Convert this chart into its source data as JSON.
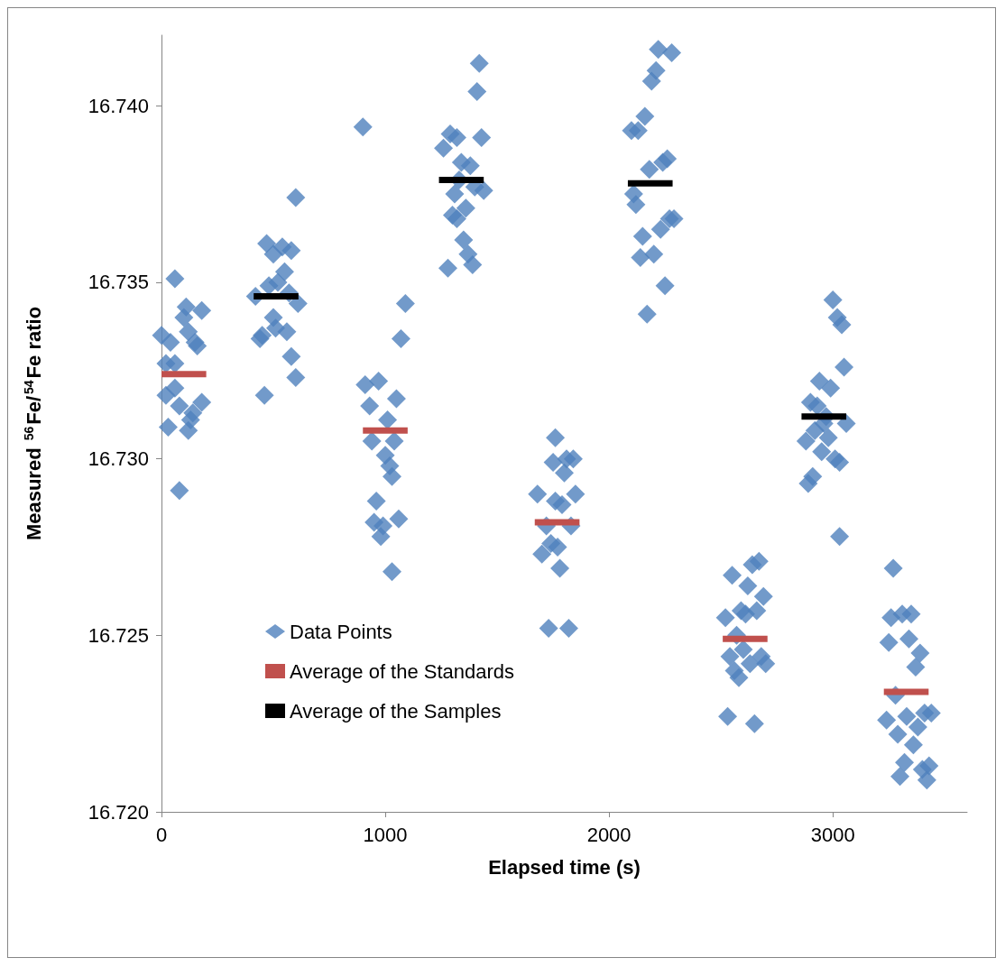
{
  "chart_data": {
    "type": "scatter",
    "xlabel": "Elapsed time (s)",
    "ylabel": "Measured $^{56}$Fe/$^{54}$Fe ratio",
    "xlim": [
      0,
      3600
    ],
    "xticks": [
      0,
      1000,
      2000,
      3000
    ],
    "ylim": [
      16.72,
      16.742
    ],
    "yticks": [
      {
        "value": 16.72,
        "label": "16.720"
      },
      {
        "value": 16.725,
        "label": "16.725"
      },
      {
        "value": 16.73,
        "label": "16.730"
      },
      {
        "value": 16.735,
        "label": "16.735"
      },
      {
        "value": 16.74,
        "label": "16.740"
      }
    ],
    "grid": false,
    "legend": "bottom left",
    "series": [
      {
        "name": "Data Points",
        "color": "#4f81bd",
        "marker": "diamond",
        "x": [
          0,
          20,
          30,
          40,
          60,
          60,
          60,
          80,
          80,
          100,
          110,
          120,
          120,
          130,
          140,
          150,
          160,
          180,
          180,
          20,
          420,
          440,
          460,
          470,
          480,
          500,
          500,
          510,
          520,
          540,
          550,
          560,
          570,
          580,
          580,
          600,
          610,
          600,
          450,
          900,
          910,
          930,
          940,
          950,
          960,
          970,
          980,
          990,
          1000,
          1010,
          1020,
          1030,
          1040,
          1050,
          1060,
          1070,
          1090,
          1030,
          1260,
          1280,
          1290,
          1300,
          1310,
          1320,
          1330,
          1340,
          1350,
          1360,
          1370,
          1380,
          1390,
          1400,
          1410,
          1420,
          1430,
          1440,
          1320,
          1680,
          1700,
          1720,
          1730,
          1740,
          1750,
          1760,
          1770,
          1780,
          1790,
          1800,
          1810,
          1820,
          1830,
          1840,
          1850,
          1760,
          2100,
          2110,
          2120,
          2130,
          2140,
          2150,
          2160,
          2170,
          2180,
          2190,
          2200,
          2210,
          2220,
          2230,
          2240,
          2250,
          2260,
          2270,
          2280,
          2290,
          2520,
          2530,
          2540,
          2550,
          2560,
          2570,
          2580,
          2590,
          2600,
          2610,
          2620,
          2630,
          2640,
          2650,
          2660,
          2670,
          2680,
          2690,
          2700,
          2880,
          2890,
          2900,
          2910,
          2920,
          2930,
          2940,
          2950,
          2960,
          2970,
          2980,
          3000,
          3010,
          3020,
          3030,
          3040,
          3050,
          3060,
          3030,
          2990,
          3240,
          3250,
          3260,
          3270,
          3280,
          3290,
          3300,
          3310,
          3320,
          3330,
          3340,
          3350,
          3360,
          3370,
          3380,
          3390,
          3400,
          3410,
          3420,
          3430,
          3440
        ],
        "values": [
          16.7335,
          16.7318,
          16.7309,
          16.7333,
          16.7351,
          16.7327,
          16.732,
          16.7291,
          16.7315,
          16.734,
          16.7343,
          16.7308,
          16.7336,
          16.7311,
          16.7313,
          16.7333,
          16.7332,
          16.7342,
          16.7316,
          16.7327,
          16.7346,
          16.7334,
          16.7318,
          16.7361,
          16.7349,
          16.7358,
          16.734,
          16.7337,
          16.735,
          16.736,
          16.7353,
          16.7336,
          16.7347,
          16.7359,
          16.7329,
          16.7323,
          16.7344,
          16.7374,
          16.7335,
          16.7394,
          16.7321,
          16.7315,
          16.7305,
          16.7282,
          16.7288,
          16.7322,
          16.7278,
          16.7281,
          16.7301,
          16.7311,
          16.7298,
          16.7268,
          16.7305,
          16.7317,
          16.7283,
          16.7334,
          16.7344,
          16.7295,
          16.7388,
          16.7354,
          16.7392,
          16.7369,
          16.7375,
          16.7391,
          16.7379,
          16.7384,
          16.7362,
          16.7371,
          16.7358,
          16.7383,
          16.7355,
          16.7377,
          16.7404,
          16.7412,
          16.7391,
          16.7376,
          16.7368,
          16.729,
          16.7273,
          16.7281,
          16.7252,
          16.7276,
          16.7299,
          16.7306,
          16.7275,
          16.7269,
          16.7287,
          16.7296,
          16.73,
          16.7252,
          16.7281,
          16.73,
          16.729,
          16.7288,
          16.7393,
          16.7375,
          16.7372,
          16.7393,
          16.7357,
          16.7363,
          16.7397,
          16.7341,
          16.7382,
          16.7407,
          16.7358,
          16.741,
          16.7416,
          16.7365,
          16.7384,
          16.7349,
          16.7385,
          16.7368,
          16.7415,
          16.7368,
          16.7255,
          16.7227,
          16.7244,
          16.7267,
          16.724,
          16.725,
          16.7238,
          16.7257,
          16.7246,
          16.7256,
          16.7264,
          16.7242,
          16.727,
          16.7225,
          16.7257,
          16.7271,
          16.7244,
          16.7261,
          16.7242,
          16.7305,
          16.7293,
          16.7316,
          16.7295,
          16.7308,
          16.7315,
          16.7322,
          16.7302,
          16.731,
          16.7312,
          16.7306,
          16.7345,
          16.73,
          16.734,
          16.7278,
          16.7338,
          16.7326,
          16.731,
          16.7299,
          16.732,
          16.7226,
          16.7248,
          16.7255,
          16.7269,
          16.7233,
          16.7222,
          16.721,
          16.7256,
          16.7214,
          16.7227,
          16.7249,
          16.7256,
          16.7219,
          16.7241,
          16.7224,
          16.7245,
          16.7212,
          16.7228,
          16.7209,
          16.7213,
          16.7228
        ]
      },
      {
        "name": "Average of the Standards",
        "color": "#c0504d",
        "type": "line",
        "marker": "none",
        "x": [
          0,
          200
        ],
        "values": [
          16.7324,
          16.7324
        ]
      },
      {
        "color": "#c0504d",
        "type": "line",
        "marker": "none",
        "x": [
          900,
          1100
        ],
        "values": [
          16.7308,
          16.7308
        ]
      },
      {
        "color": "#c0504d",
        "type": "line",
        "marker": "none",
        "x": [
          1668,
          1868
        ],
        "values": [
          16.7282,
          16.7282
        ]
      },
      {
        "color": "#c0504d",
        "type": "line",
        "marker": "none",
        "x": [
          2508,
          2708
        ],
        "values": [
          16.7249,
          16.7249
        ]
      },
      {
        "color": "#c0504d",
        "type": "line",
        "marker": "none",
        "x": [
          3228,
          3428
        ],
        "values": [
          16.7234,
          16.7234
        ]
      },
      {
        "name": "Average of the Samples",
        "color": "#000000",
        "type": "line",
        "marker": "none",
        "x": [
          412,
          612
        ],
        "values": [
          16.7346,
          16.7346
        ]
      },
      {
        "color": "#000000",
        "type": "line",
        "marker": "none",
        "x": [
          1240,
          1440
        ],
        "values": [
          16.7379,
          16.7379
        ]
      },
      {
        "color": "#000000",
        "type": "line",
        "marker": "none",
        "x": [
          2084,
          2284
        ],
        "values": [
          16.7378,
          16.7378
        ]
      },
      {
        "color": "#000000",
        "type": "line",
        "marker": "none",
        "x": [
          2860,
          3060
        ],
        "values": [
          16.7312,
          16.7312
        ]
      }
    ]
  }
}
